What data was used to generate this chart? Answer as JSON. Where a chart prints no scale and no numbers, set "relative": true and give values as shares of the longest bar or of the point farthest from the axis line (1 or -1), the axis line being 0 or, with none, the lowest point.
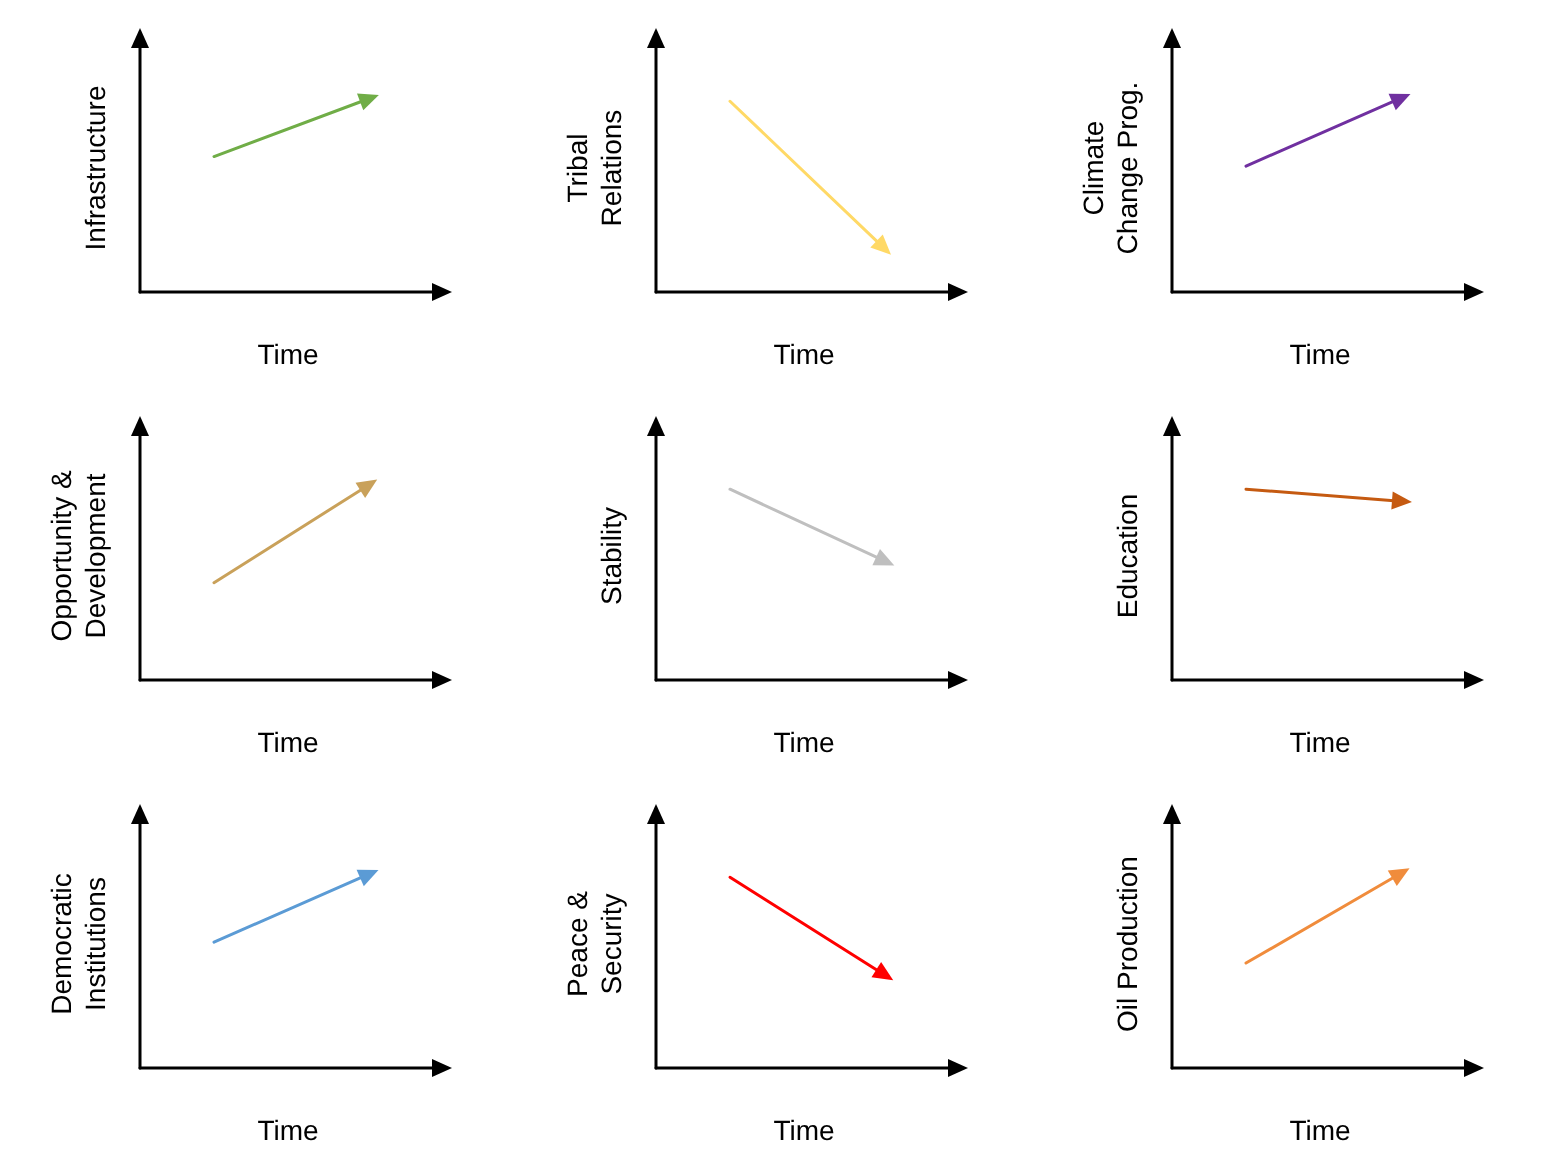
{
  "chart_data": [
    {
      "type": "line",
      "relative": true,
      "xlabel": "Time",
      "ylabel": "Infrastructure",
      "categories": [
        null,
        null
      ],
      "series": [
        {
          "color": "#70ad47",
          "values": [
            0.71,
            1
          ]
        }
      ]
    },
    {
      "type": "line",
      "relative": true,
      "xlabel": "Time",
      "ylabel": "Tribal\nRelations",
      "categories": [
        null,
        null
      ],
      "series": [
        {
          "color": "#ffd966",
          "values": [
            1,
            0.26
          ]
        }
      ]
    },
    {
      "type": "line",
      "relative": true,
      "xlabel": "Time",
      "ylabel": "Climate\nChange Prog.",
      "categories": [
        null,
        null
      ],
      "series": [
        {
          "color": "#7030a0",
          "values": [
            0.66,
            1
          ]
        }
      ]
    },
    {
      "type": "line",
      "relative": true,
      "xlabel": "Time",
      "ylabel": "Opportunity &\nDevelopment",
      "categories": [
        null,
        null
      ],
      "series": [
        {
          "color": "#c9a15a",
          "values": [
            0.51,
            1
          ]
        }
      ]
    },
    {
      "type": "line",
      "relative": true,
      "xlabel": "Time",
      "ylabel": "Stability",
      "categories": [
        null,
        null
      ],
      "series": [
        {
          "color": "#bfbfbf",
          "values": [
            1,
            0.64
          ]
        }
      ]
    },
    {
      "type": "line",
      "relative": true,
      "xlabel": "Time",
      "ylabel": "Education",
      "categories": [
        null,
        null
      ],
      "series": [
        {
          "color": "#c55a11",
          "values": [
            1,
            0.94
          ]
        }
      ]
    },
    {
      "type": "line",
      "relative": true,
      "xlabel": "Time",
      "ylabel": "Democratic\nInstitutions",
      "categories": [
        null,
        null
      ],
      "series": [
        {
          "color": "#5b9bd5",
          "values": [
            0.66,
            1
          ]
        }
      ]
    },
    {
      "type": "line",
      "relative": true,
      "xlabel": "Time",
      "ylabel": "Peace &\nSecurity",
      "categories": [
        null,
        null
      ],
      "series": [
        {
          "color": "#ff0000",
          "values": [
            1,
            0.51
          ]
        }
      ]
    },
    {
      "type": "line",
      "relative": true,
      "xlabel": "Time",
      "ylabel": "Oil Production",
      "categories": [
        null,
        null
      ],
      "series": [
        {
          "color": "#f08c3c",
          "values": [
            0.55,
            1
          ]
        }
      ]
    }
  ]
}
